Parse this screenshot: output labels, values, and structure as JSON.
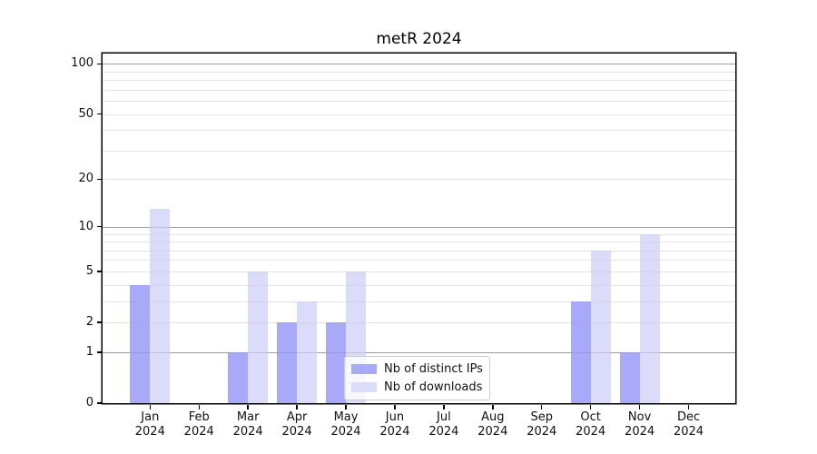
{
  "chart_data": {
    "type": "bar",
    "title": "metR 2024",
    "categories": [
      "Jan",
      "Feb",
      "Mar",
      "Apr",
      "May",
      "Jun",
      "Jul",
      "Aug",
      "Sep",
      "Oct",
      "Nov",
      "Dec"
    ],
    "year_label": "2024",
    "series": [
      {
        "name": "Nb of distinct IPs",
        "color": "#a9a9fa",
        "values": [
          4,
          0,
          1,
          2,
          2,
          0,
          0,
          0,
          0,
          3,
          1,
          0
        ]
      },
      {
        "name": "Nb of downloads",
        "color": "#dbdbfa",
        "values": [
          13,
          0,
          5,
          3,
          5,
          0,
          0,
          0,
          0,
          7,
          9,
          0
        ]
      }
    ],
    "xlabel": "",
    "ylabel": "",
    "yscale": "log1p",
    "ylim": [
      0,
      115
    ],
    "yticks": [
      0,
      1,
      2,
      5,
      10,
      20,
      50,
      100
    ],
    "major_gridlines": [
      1,
      10,
      100
    ],
    "minor_gridlines": [
      2,
      3,
      4,
      5,
      6,
      7,
      8,
      9,
      20,
      30,
      40,
      50,
      60,
      70,
      80,
      90
    ],
    "grid": "on",
    "legend_position": "lower center"
  },
  "colors": {
    "bar_distinct_ips": "#a9a9fa",
    "bar_downloads": "#dbdbfa",
    "major_grid": "#b0b0b0",
    "minor_grid": "#ececec",
    "axis": "#000000",
    "legend_border": "#cccccc",
    "background": "#ffffff"
  }
}
